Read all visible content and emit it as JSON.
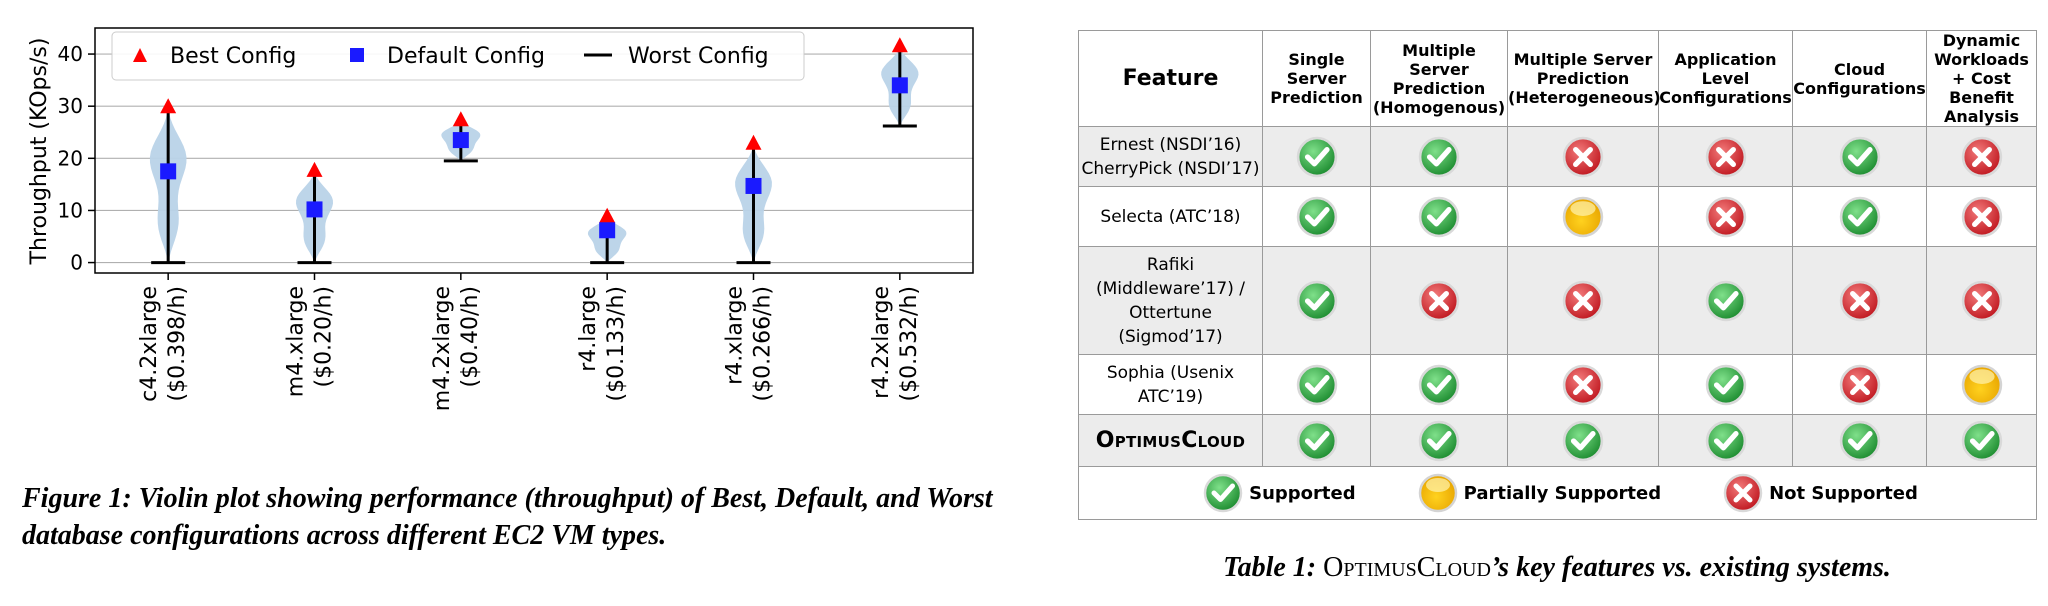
{
  "figure": {
    "caption": "Figure 1: Violin plot showing performance (throughput) of Best, Default, and Worst database configurations across different EC2 VM types.",
    "legend": [
      "Best Config",
      "Default Config",
      "Worst Config"
    ],
    "colors": {
      "violin": "#b9d3e8",
      "best": "#ff0000",
      "default": "#1a1aff",
      "worst": "#000000",
      "grid": "#b0b0b0"
    }
  },
  "chart_data": {
    "type": "violin",
    "ylabel": "Throughput (KOps/s)",
    "xlabel": "",
    "ylim": [
      -2,
      45
    ],
    "yticks": [
      0,
      10,
      20,
      30,
      40
    ],
    "grid": true,
    "legend_position": "top",
    "categories": [
      [
        "c4.2xlarge",
        "($0.398/h)"
      ],
      [
        "m4.xlarge",
        "($0.20/h)"
      ],
      [
        "m4.2xlarge",
        "($0.40/h)"
      ],
      [
        "r4.large",
        "($0.133/h)"
      ],
      [
        "r4.xlarge",
        "($0.266/h)"
      ],
      [
        "r4.2xlarge",
        "($0.532/h)"
      ]
    ],
    "series": [
      {
        "name": "Best Config",
        "values": [
          29.8,
          17.6,
          27.3,
          8.8,
          22.8,
          41.5
        ]
      },
      {
        "name": "Default Config",
        "values": [
          17.5,
          10.2,
          23.5,
          6.2,
          14.7,
          34.0
        ]
      },
      {
        "name": "Worst Config",
        "values": [
          0,
          0,
          19.5,
          0,
          0,
          26.2
        ]
      }
    ]
  },
  "table": {
    "caption_prefix": "Table 1:",
    "caption_system": "OptimusCloud",
    "caption_suffix": "’s key features vs. existing systems.",
    "headers": [
      "Feature",
      "Single Server Prediction",
      "Multiple Server Prediction (Homogenous)",
      "Multiple Server Prediction (Heterogeneous)",
      "Application Level Configurations",
      "Cloud Configurations",
      "Dynamic Workloads + Cost Benefit Analysis"
    ],
    "rows": [
      {
        "name": "Ernest (NSDI’16) CherryPick (NSDI’17)",
        "cells": [
          "check",
          "check",
          "cross",
          "cross",
          "check",
          "cross"
        ]
      },
      {
        "name": "Selecta (ATC’18)",
        "cells": [
          "check",
          "check",
          "partial",
          "cross",
          "check",
          "cross"
        ]
      },
      {
        "name": "Rafiki (Middleware’17) / Ottertune (Sigmod’17)",
        "cells": [
          "check",
          "cross",
          "cross",
          "check",
          "cross",
          "cross"
        ]
      },
      {
        "name": "Sophia (Usenix ATC’19)",
        "cells": [
          "check",
          "check",
          "cross",
          "check",
          "cross",
          "partial"
        ]
      },
      {
        "name": "OptimusCloud",
        "cells": [
          "check",
          "check",
          "check",
          "check",
          "check",
          "check"
        ]
      }
    ],
    "legend": {
      "check": "Supported",
      "partial": "Partially Supported",
      "cross": "Not Supported"
    }
  }
}
